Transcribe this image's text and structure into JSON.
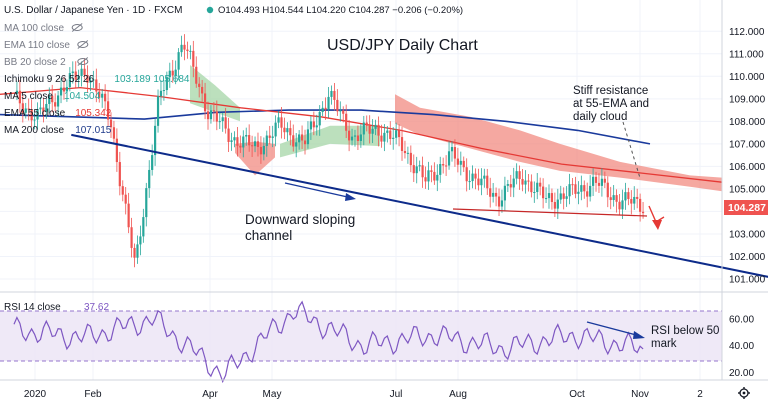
{
  "header": {
    "symbol": "U.S. Dollar / Japanese Yen · 1D · FXCM",
    "ohlc": "O104.493 H104.544 L104.220 C104.287 −0.206 (−0.20%)"
  },
  "indicators": [
    {
      "label": "MA 100 close",
      "value": "",
      "color": "#787b86",
      "hidden": true
    },
    {
      "label": "EMA 110 close",
      "value": "",
      "color": "#787b86",
      "hidden": true
    },
    {
      "label": "BB 20 close 2",
      "value": "",
      "color": "#787b86",
      "hidden": true
    },
    {
      "label": "Ichimoku 9 26 52 26",
      "value": "103.189 105.684",
      "color": "#26a69a",
      "hidden": false
    },
    {
      "label": "MA 5 close",
      "value": "104.504",
      "color": "#26a69a",
      "hidden": false
    },
    {
      "label": "EMA 55 close",
      "value": "105.342",
      "color": "#e53935",
      "hidden": false
    },
    {
      "label": "MA 200 close",
      "value": "107.015",
      "color": "#1e3a8a",
      "hidden": false
    }
  ],
  "rsi": {
    "label": "RSI 14 close",
    "value": "37.62"
  },
  "price_tag": "104.287",
  "annotations": {
    "title": "USD/JPY Daily Chart",
    "resistance_note": [
      "Stiff resistance",
      "at 55-EMA and",
      "daily cloud"
    ],
    "channel_note": [
      "Downward sloping",
      "channel"
    ],
    "rsi_note": [
      "RSI below 50",
      "mark"
    ]
  },
  "colors": {
    "up": "#26a69a",
    "down": "#ef5350",
    "ema55": "#e53935",
    "ma200": "#1a3a9c",
    "channel": "#0d2b8a",
    "cloud_bull": "#a5d6a7",
    "cloud_bear": "#f28b82",
    "rsi": "#7e57c2"
  },
  "chart_data": {
    "type": "line",
    "price_axis": {
      "ylim": [
        100.6,
        112.5
      ],
      "ticks": [
        "112.000",
        "111.000",
        "110.000",
        "109.000",
        "108.000",
        "107.000",
        "106.000",
        "105.000",
        "104.000",
        "103.000",
        "102.000",
        "101.000"
      ]
    },
    "rsi_axis": {
      "ylim": [
        16,
        74
      ],
      "ticks": [
        "60.00",
        "40.00",
        "20.00"
      ],
      "bands": [
        30,
        70
      ]
    },
    "x_ticks": [
      "2020",
      "Feb",
      "Apr",
      "May",
      "Jul",
      "Aug",
      "Oct",
      "Nov",
      "2"
    ],
    "series": [
      {
        "name": "MA 200 close",
        "values": [
          108.3,
          108.2,
          108.1,
          108.4,
          108.5,
          108.5,
          108.3,
          108.0,
          107.6,
          107.0
        ]
      },
      {
        "name": "EMA 55 close",
        "values": [
          109.2,
          109.5,
          109.1,
          108.6,
          108.2,
          107.6,
          106.8,
          106.1,
          105.7,
          105.3
        ]
      },
      {
        "name": "RSI 14 close",
        "values": [
          52,
          46,
          60,
          18,
          66,
          40,
          48,
          38,
          48,
          37.62
        ]
      }
    ],
    "close_path": [
      109.0,
      108.2,
      109.5,
      110.3,
      108.0,
      101.5,
      109.0,
      111.5,
      108.5,
      107.3,
      106.8,
      107.8,
      107.0,
      109.2,
      107.3,
      107.7,
      107.0,
      105.3,
      106.5,
      105.5,
      104.6,
      105.6,
      104.5,
      104.8,
      105.3,
      104.5,
      104.3
    ],
    "channel": {
      "upper": [
        [
          109.5,
          111.8
        ],
        [
          108.8,
          110.0
        ]
      ],
      "lower": [
        [
          88.8,
          107.4
        ],
        [
          108.8,
          101.0
        ]
      ]
    }
  }
}
